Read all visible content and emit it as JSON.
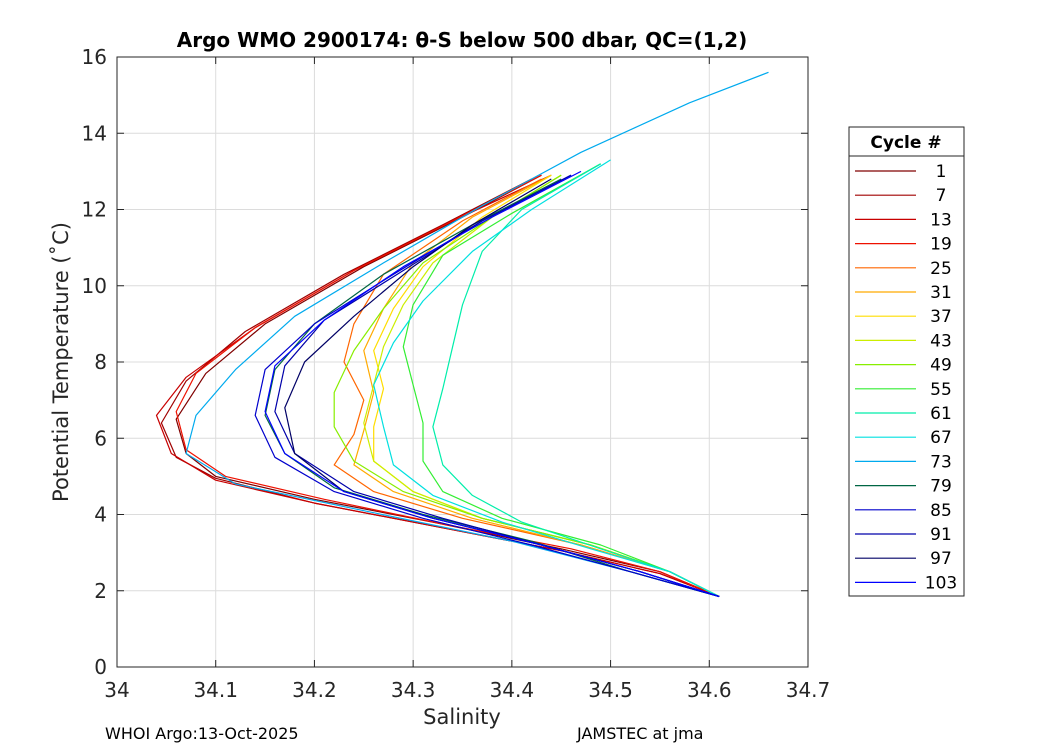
{
  "chart_data": {
    "type": "line",
    "title": "Argo WMO 2900174: θ-S below 500 dbar,  QC=(1,2)",
    "xlabel": "Salinity",
    "ylabel": "Potential Temperature (˚C)",
    "xlim": [
      34.0,
      34.7
    ],
    "ylim": [
      0,
      16
    ],
    "xticks": [
      "34",
      "34.1",
      "34.2",
      "34.3",
      "34.4",
      "34.5",
      "34.6",
      "34.7"
    ],
    "yticks": [
      "0",
      "2",
      "4",
      "6",
      "8",
      "10",
      "12",
      "14",
      "16"
    ],
    "grid": true,
    "legend_title": "Cycle #",
    "legend_position": "right-outside",
    "series": [
      {
        "name": "1",
        "color": "#800000",
        "salinity": [
          34.43,
          34.35,
          34.25,
          34.15,
          34.09,
          34.06,
          34.07,
          34.1,
          34.2,
          34.32,
          34.45,
          34.55,
          34.61
        ],
        "temperature": [
          12.9,
          11.8,
          10.5,
          9.0,
          7.7,
          6.5,
          5.6,
          5.0,
          4.4,
          3.8,
          3.1,
          2.5,
          1.85
        ]
      },
      {
        "name": "7",
        "color": "#a00000",
        "salinity": [
          34.42,
          34.33,
          34.23,
          34.13,
          34.07,
          34.045,
          34.06,
          34.1,
          34.2,
          34.32,
          34.45,
          34.55,
          34.61
        ],
        "temperature": [
          12.8,
          11.6,
          10.3,
          8.8,
          7.5,
          6.4,
          5.5,
          4.95,
          4.3,
          3.7,
          3.05,
          2.45,
          1.85
        ]
      },
      {
        "name": "13",
        "color": "#c80000",
        "salinity": [
          34.44,
          34.34,
          34.24,
          34.14,
          34.07,
          34.04,
          34.055,
          34.1,
          34.2,
          34.32,
          34.45,
          34.55,
          34.61
        ],
        "temperature": [
          12.9,
          11.7,
          10.4,
          8.9,
          7.6,
          6.6,
          5.6,
          4.9,
          4.3,
          3.7,
          3.05,
          2.45,
          1.85
        ]
      },
      {
        "name": "19",
        "color": "#ee1100",
        "salinity": [
          34.43,
          34.34,
          34.24,
          34.14,
          34.08,
          34.06,
          34.07,
          34.11,
          34.21,
          34.33,
          34.46,
          34.55,
          34.61
        ],
        "temperature": [
          12.9,
          11.7,
          10.4,
          8.9,
          7.7,
          6.7,
          5.7,
          5.0,
          4.4,
          3.75,
          3.1,
          2.5,
          1.85
        ]
      },
      {
        "name": "25",
        "color": "#ff6600",
        "salinity": [
          34.43,
          34.35,
          34.27,
          34.24,
          34.23,
          34.25,
          34.24,
          34.22,
          34.26,
          34.35,
          34.47,
          34.56,
          34.61
        ],
        "temperature": [
          12.8,
          11.7,
          10.3,
          9.0,
          8.0,
          7.0,
          6.1,
          5.3,
          4.6,
          3.9,
          3.2,
          2.5,
          1.85
        ]
      },
      {
        "name": "31",
        "color": "#ffaa00",
        "salinity": [
          34.44,
          34.36,
          34.3,
          34.27,
          34.25,
          34.26,
          34.25,
          34.24,
          34.28,
          34.36,
          34.47,
          34.56,
          34.61
        ],
        "temperature": [
          12.9,
          11.8,
          10.6,
          9.4,
          8.3,
          7.2,
          6.2,
          5.3,
          4.6,
          3.9,
          3.2,
          2.5,
          1.85
        ]
      },
      {
        "name": "37",
        "color": "#ffdd00",
        "salinity": [
          34.44,
          34.37,
          34.31,
          34.28,
          34.26,
          34.27,
          34.26,
          34.26,
          34.3,
          34.37,
          34.48,
          34.56,
          34.61
        ],
        "temperature": [
          12.9,
          11.8,
          10.5,
          9.4,
          8.3,
          7.3,
          6.3,
          5.4,
          4.6,
          3.9,
          3.2,
          2.5,
          1.85
        ]
      },
      {
        "name": "43",
        "color": "#ccee00",
        "salinity": [
          34.45,
          34.38,
          34.32,
          34.29,
          34.27,
          34.26,
          34.25,
          34.26,
          34.3,
          34.37,
          34.48,
          34.56,
          34.61
        ],
        "temperature": [
          12.9,
          11.8,
          10.6,
          9.5,
          8.4,
          7.4,
          6.4,
          5.4,
          4.6,
          3.9,
          3.2,
          2.5,
          1.85
        ]
      },
      {
        "name": "49",
        "color": "#88ee00",
        "salinity": [
          34.45,
          34.38,
          34.31,
          34.27,
          34.24,
          34.22,
          34.22,
          34.24,
          34.29,
          34.37,
          34.48,
          34.56,
          34.61
        ],
        "temperature": [
          12.9,
          11.8,
          10.6,
          9.4,
          8.3,
          7.2,
          6.3,
          5.4,
          4.6,
          3.9,
          3.2,
          2.5,
          1.85
        ]
      },
      {
        "name": "55",
        "color": "#33ee33",
        "salinity": [
          34.49,
          34.4,
          34.33,
          34.3,
          34.29,
          34.3,
          34.31,
          34.31,
          34.33,
          34.39,
          34.49,
          34.56,
          34.61
        ],
        "temperature": [
          13.2,
          11.9,
          10.8,
          9.5,
          8.4,
          7.4,
          6.4,
          5.4,
          4.6,
          3.9,
          3.2,
          2.5,
          1.85
        ]
      },
      {
        "name": "61",
        "color": "#00eeaa",
        "salinity": [
          34.49,
          34.41,
          34.37,
          34.35,
          34.34,
          34.33,
          34.32,
          34.33,
          34.36,
          34.41,
          34.49,
          34.56,
          34.61
        ],
        "temperature": [
          13.2,
          12.0,
          10.9,
          9.5,
          8.4,
          7.3,
          6.3,
          5.3,
          4.5,
          3.8,
          3.1,
          2.5,
          1.85
        ]
      },
      {
        "name": "67",
        "color": "#00e0e0",
        "salinity": [
          34.5,
          34.42,
          34.36,
          34.31,
          34.28,
          34.26,
          34.27,
          34.28,
          34.32,
          34.39,
          34.48,
          34.56,
          34.61
        ],
        "temperature": [
          13.3,
          12.0,
          10.9,
          9.6,
          8.5,
          7.4,
          6.3,
          5.3,
          4.5,
          3.8,
          3.1,
          2.5,
          1.85
        ]
      },
      {
        "name": "73",
        "color": "#00aaee",
        "salinity": [
          34.66,
          34.58,
          34.47,
          34.37,
          34.27,
          34.18,
          34.12,
          34.08,
          34.07,
          34.12,
          34.25,
          34.4,
          34.52,
          34.61
        ],
        "temperature": [
          15.6,
          14.8,
          13.5,
          12.1,
          10.6,
          9.2,
          7.8,
          6.6,
          5.6,
          4.8,
          4.1,
          3.3,
          2.5,
          1.85
        ]
      },
      {
        "name": "79",
        "color": "#006644",
        "salinity": [
          34.45,
          34.36,
          34.27,
          34.2,
          34.16,
          34.15,
          34.17,
          34.22,
          34.31,
          34.42,
          34.52,
          34.61
        ],
        "temperature": [
          12.8,
          11.6,
          10.3,
          9.0,
          7.8,
          6.6,
          5.6,
          4.7,
          4.0,
          3.3,
          2.5,
          1.85
        ]
      },
      {
        "name": "85",
        "color": "#0000cc",
        "salinity": [
          34.46,
          34.37,
          34.28,
          34.2,
          34.15,
          34.14,
          34.16,
          34.22,
          34.31,
          34.42,
          34.52,
          34.61
        ],
        "temperature": [
          12.9,
          11.7,
          10.3,
          9.0,
          7.8,
          6.6,
          5.5,
          4.6,
          3.9,
          3.2,
          2.5,
          1.85
        ]
      },
      {
        "name": "91",
        "color": "#0000aa",
        "salinity": [
          34.46,
          34.37,
          34.29,
          34.21,
          34.17,
          34.16,
          34.18,
          34.24,
          34.33,
          34.43,
          34.53,
          34.61
        ],
        "temperature": [
          12.9,
          11.7,
          10.4,
          9.1,
          7.9,
          6.7,
          5.6,
          4.6,
          3.9,
          3.2,
          2.5,
          1.85
        ]
      },
      {
        "name": "97",
        "color": "#000066",
        "salinity": [
          34.44,
          34.36,
          34.3,
          34.24,
          34.19,
          34.17,
          34.18,
          34.23,
          34.32,
          34.43,
          34.53,
          34.61
        ],
        "temperature": [
          12.8,
          11.6,
          10.5,
          9.2,
          8.0,
          6.8,
          5.6,
          4.6,
          3.9,
          3.2,
          2.5,
          1.85
        ]
      },
      {
        "name": "103",
        "color": "#0000ff",
        "salinity": [
          34.47,
          34.38,
          34.29,
          34.21,
          34.16,
          34.15,
          34.17,
          34.23,
          34.32,
          34.43,
          34.53,
          34.61
        ],
        "temperature": [
          13.0,
          11.8,
          10.5,
          9.1,
          7.9,
          6.7,
          5.6,
          4.6,
          3.9,
          3.2,
          2.5,
          1.85
        ]
      }
    ]
  },
  "footer": {
    "left": "WHOI Argo:13-Oct-2025",
    "right": "JAMSTEC at jma"
  }
}
